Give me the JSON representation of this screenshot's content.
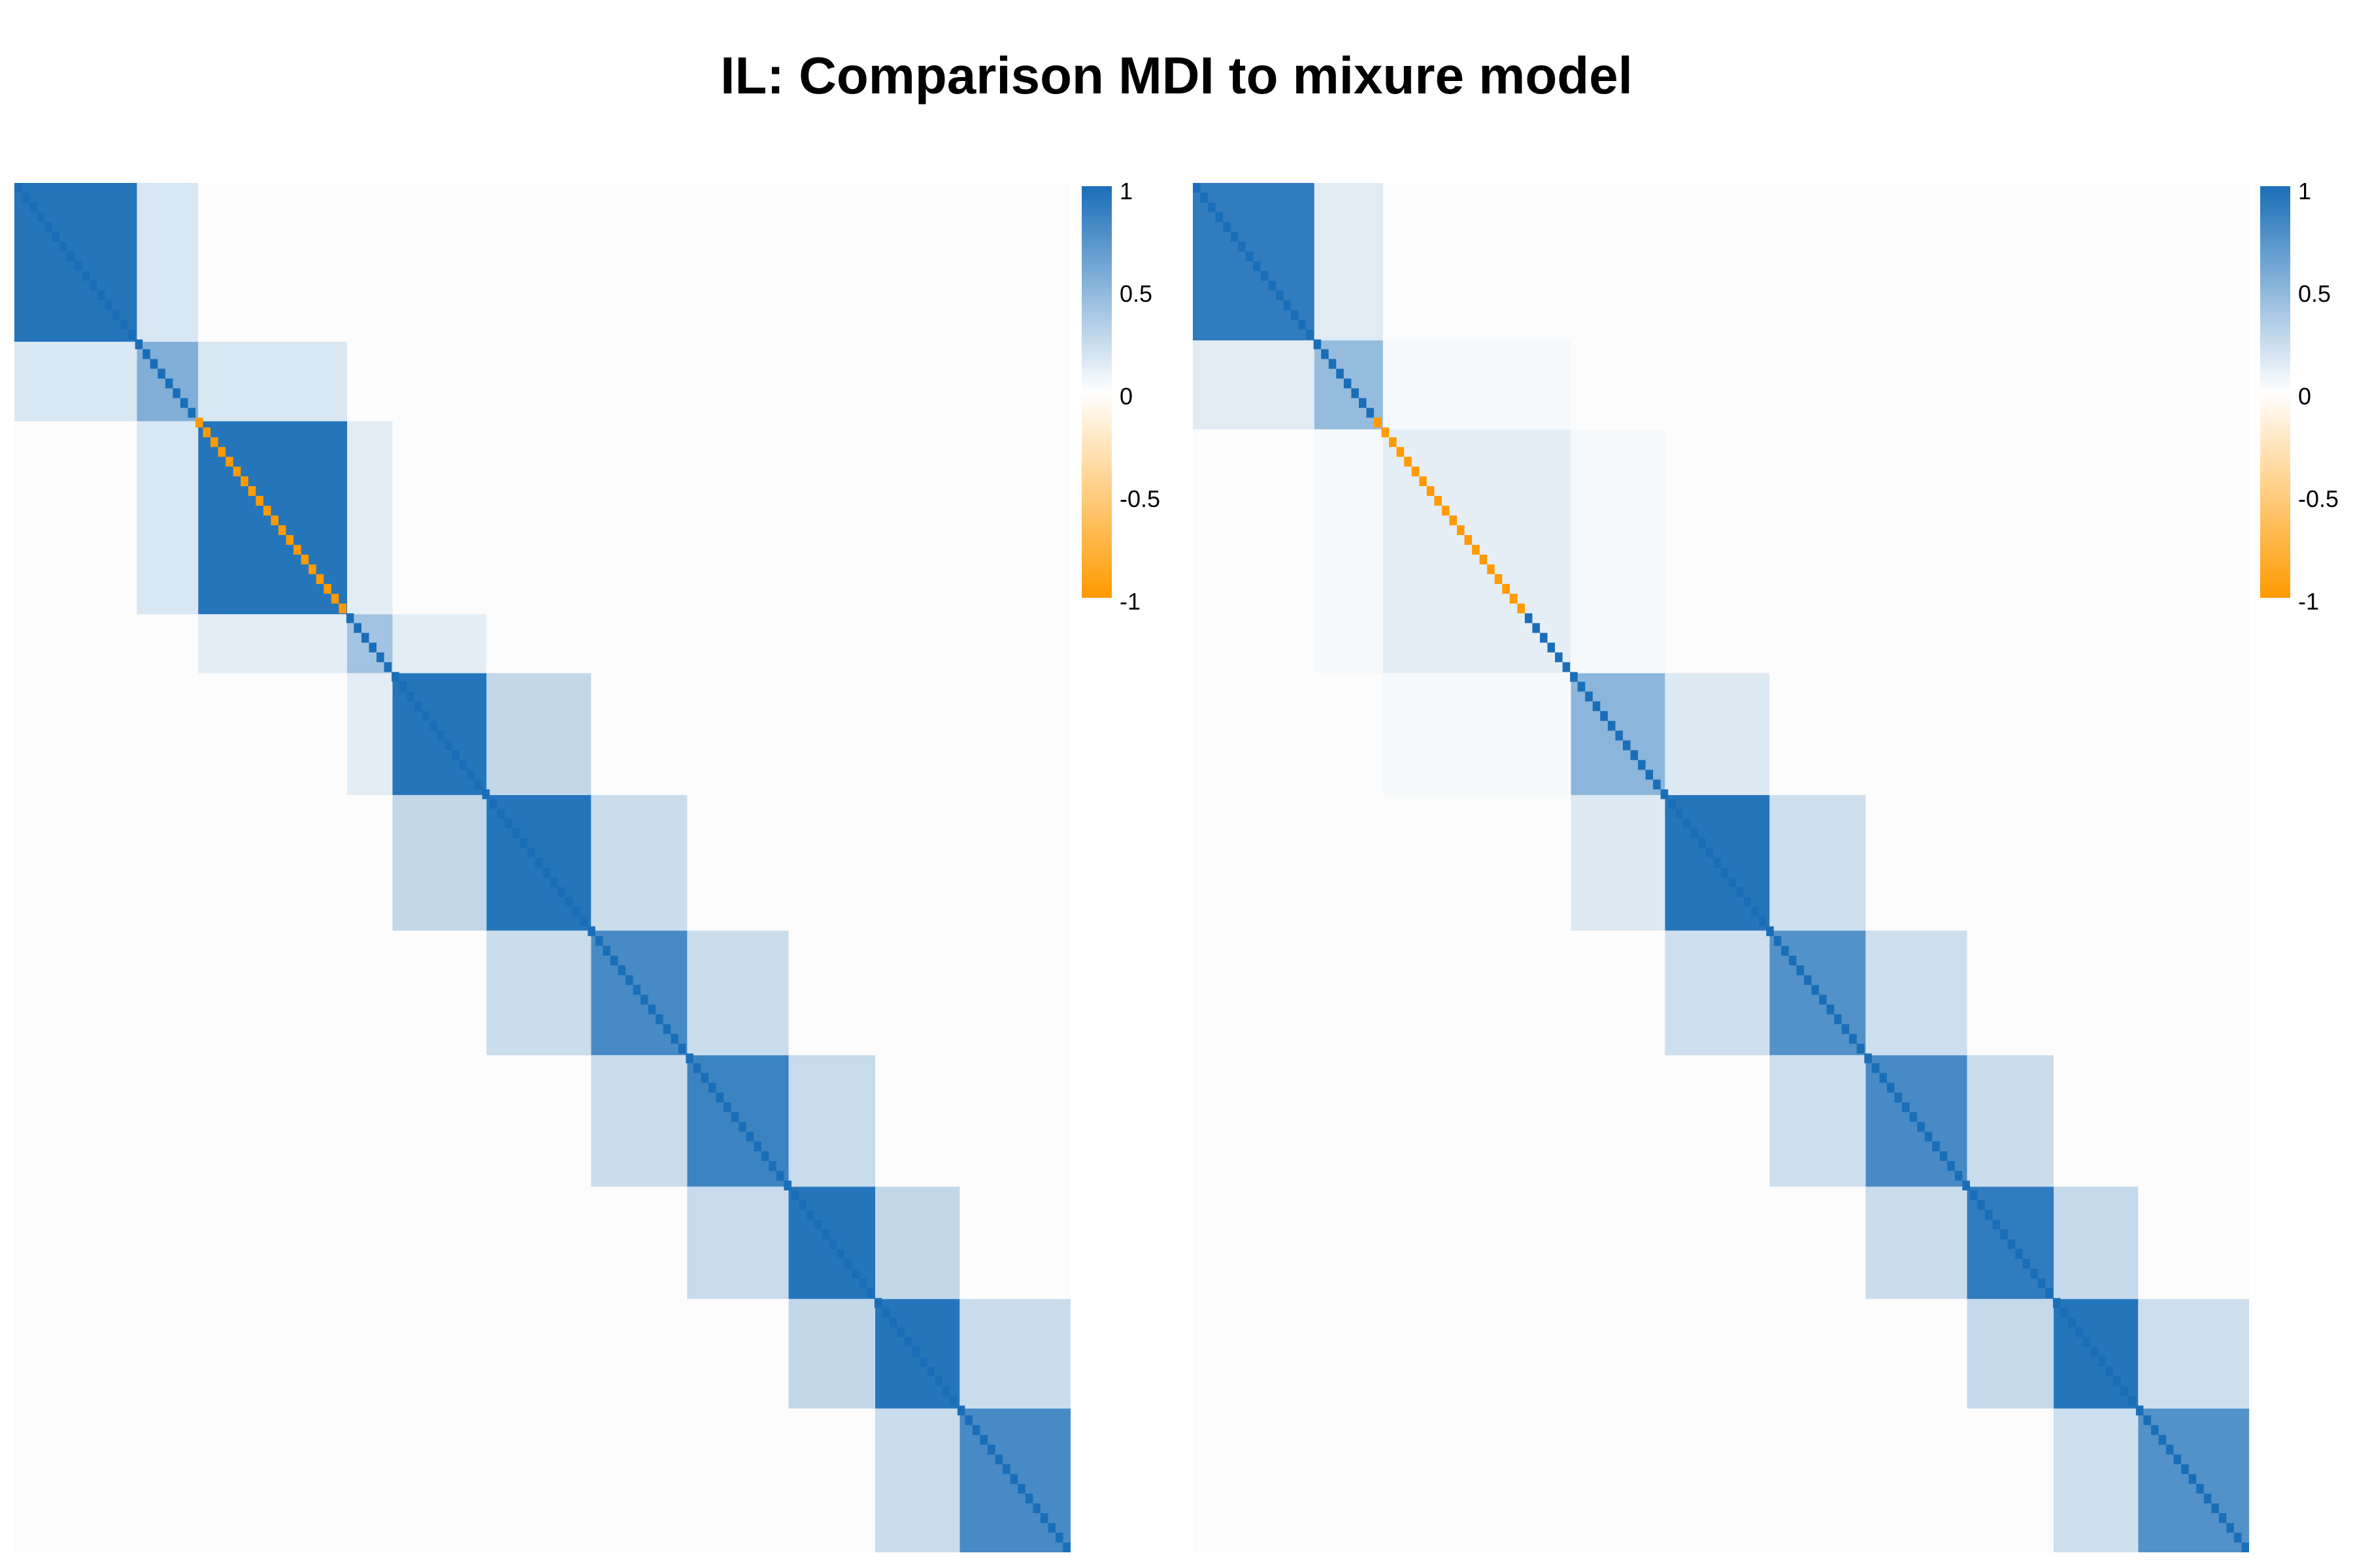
{
  "title": "IL: Comparison MDI to mixure model",
  "colors": {
    "positive": "#1a6eb8",
    "zero": "#ffffff",
    "negative": "#ff9a00",
    "background": "#fcfcfc"
  },
  "chart_data": [
    {
      "type": "heatmap",
      "title": "",
      "description_scale": "similarity matrix, blue = 1, orange = -1",
      "legend": {
        "ticks": [
          "1",
          "0.5",
          "0",
          "-0.5",
          "-1"
        ],
        "range": [
          -1,
          1
        ],
        "placement": "right"
      },
      "blocks": [
        {
          "start": 0.0,
          "end": 0.116,
          "value": 0.95
        },
        {
          "start": 0.116,
          "end": 0.174,
          "value": 0.55
        },
        {
          "start": 0.174,
          "end": 0.315,
          "value": 0.95
        },
        {
          "start": 0.315,
          "end": 0.358,
          "value": 0.4
        },
        {
          "start": 0.358,
          "end": 0.447,
          "value": 0.95
        },
        {
          "start": 0.447,
          "end": 0.546,
          "value": 0.95
        },
        {
          "start": 0.546,
          "end": 0.637,
          "value": 0.8
        },
        {
          "start": 0.637,
          "end": 0.733,
          "value": 0.85
        },
        {
          "start": 0.733,
          "end": 0.815,
          "value": 0.95
        },
        {
          "start": 0.815,
          "end": 0.895,
          "value": 0.95
        },
        {
          "start": 0.895,
          "end": 1.0,
          "value": 0.8
        }
      ],
      "negative_diagonal": [
        0.17,
        0.31
      ]
    },
    {
      "type": "heatmap",
      "title": "",
      "legend": {
        "ticks": [
          "1",
          "0.5",
          "0",
          "-0.5",
          "-1"
        ],
        "range": [
          -1,
          1
        ],
        "placement": "right"
      },
      "blocks": [
        {
          "start": 0.0,
          "end": 0.115,
          "value": 0.9
        },
        {
          "start": 0.115,
          "end": 0.18,
          "value": 0.45
        },
        {
          "start": 0.18,
          "end": 0.358,
          "value": 0.1
        },
        {
          "start": 0.358,
          "end": 0.447,
          "value": 0.5
        },
        {
          "start": 0.447,
          "end": 0.546,
          "value": 0.95
        },
        {
          "start": 0.546,
          "end": 0.637,
          "value": 0.75
        },
        {
          "start": 0.637,
          "end": 0.733,
          "value": 0.8
        },
        {
          "start": 0.733,
          "end": 0.815,
          "value": 0.9
        },
        {
          "start": 0.815,
          "end": 0.895,
          "value": 0.95
        },
        {
          "start": 0.895,
          "end": 1.0,
          "value": 0.75
        }
      ],
      "negative_diagonal": [
        0.17,
        0.31
      ]
    }
  ]
}
